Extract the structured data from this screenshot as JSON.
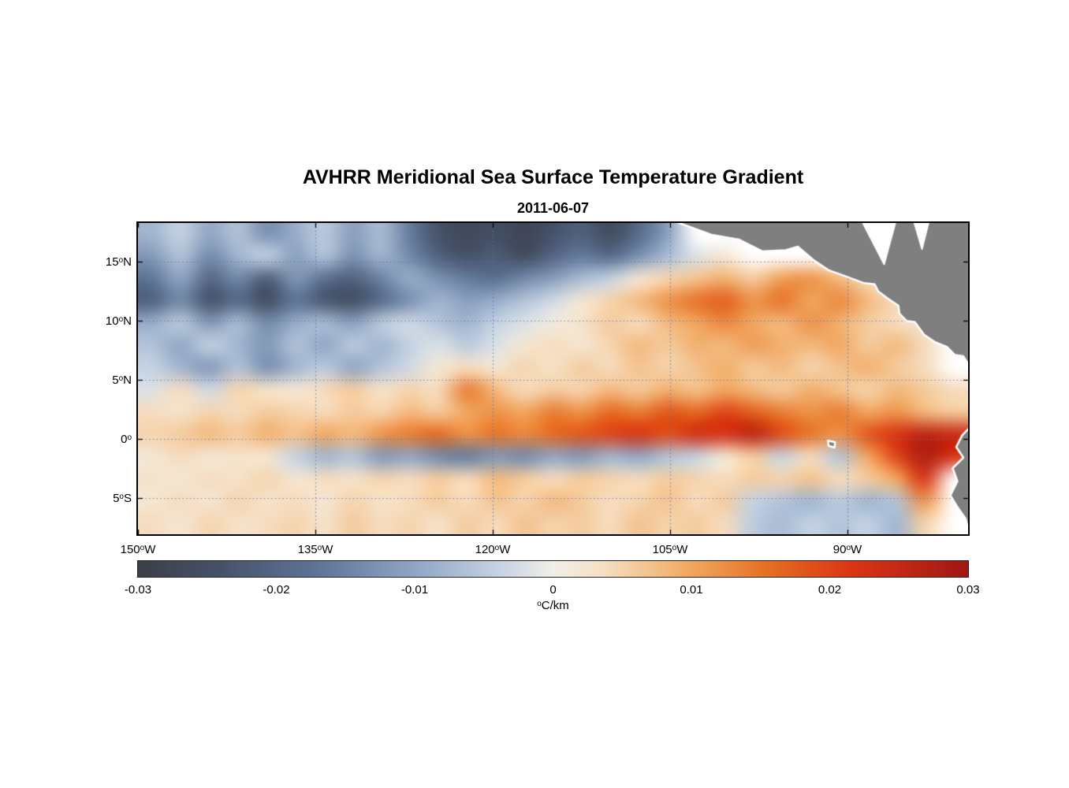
{
  "chart_data": {
    "type": "heatmap",
    "title": "AVHRR Meridional Sea Surface Temperature Gradient",
    "subtitle": "2011-06-07",
    "x_axis": {
      "label": "",
      "range": [
        -150,
        -79.8
      ],
      "ticks": [
        {
          "value": -150,
          "label": "150°W"
        },
        {
          "value": -135,
          "label": "135°W"
        },
        {
          "value": -120,
          "label": "120°W"
        },
        {
          "value": -105,
          "label": "105°W"
        },
        {
          "value": -90,
          "label": "90°W"
        }
      ]
    },
    "y_axis": {
      "label": "",
      "range": [
        18.3,
        -8.1
      ],
      "ticks": [
        {
          "value": 15,
          "label": "15°N"
        },
        {
          "value": 10,
          "label": "10°N"
        },
        {
          "value": 5,
          "label": "5°N"
        },
        {
          "value": 0,
          "label": "0°"
        },
        {
          "value": -5,
          "label": "5°S"
        }
      ]
    },
    "grid": {
      "lon_lines": [
        -135,
        -120,
        -105,
        -90
      ],
      "lat_lines": [
        15,
        10,
        5,
        0,
        -5
      ],
      "color": "#5578b4",
      "style": "dotted"
    },
    "colorbar": {
      "range": [
        -0.03,
        0.03
      ],
      "label": "°C/km",
      "ticks": [
        {
          "value": -0.03,
          "label": "-0.03"
        },
        {
          "value": -0.02,
          "label": "-0.02"
        },
        {
          "value": -0.01,
          "label": "-0.01"
        },
        {
          "value": 0,
          "label": "0"
        },
        {
          "value": 0.01,
          "label": "0.01"
        },
        {
          "value": 0.02,
          "label": "0.02"
        },
        {
          "value": 0.03,
          "label": "0.03"
        }
      ],
      "stops": [
        {
          "p": 0.0,
          "c": "#3b3f47"
        },
        {
          "p": 0.1,
          "c": "#46526a"
        },
        {
          "p": 0.22,
          "c": "#5f7698"
        },
        {
          "p": 0.34,
          "c": "#93a9c7"
        },
        {
          "p": 0.44,
          "c": "#c9d5e4"
        },
        {
          "p": 0.5,
          "c": "#f1efe8"
        },
        {
          "p": 0.56,
          "c": "#f6e0c4"
        },
        {
          "p": 0.66,
          "c": "#f2ab64"
        },
        {
          "p": 0.76,
          "c": "#e56e22"
        },
        {
          "p": 0.86,
          "c": "#da3514"
        },
        {
          "p": 1.0,
          "c": "#a01713"
        }
      ]
    },
    "grid_lon": [
      -150,
      -147.5,
      -145,
      -142.5,
      -140,
      -137.5,
      -135,
      -132.5,
      -130,
      -127.5,
      -125,
      -122.5,
      -120,
      -117.5,
      -115,
      -112.5,
      -110,
      -107.5,
      -105,
      -102.5,
      -100,
      -97.5,
      -95,
      -92.5,
      -90,
      -87.5,
      -85,
      -82.5,
      -80
    ],
    "grid_lat": [
      18,
      16,
      14,
      12,
      10,
      8,
      6,
      4,
      2,
      0,
      -2,
      -4,
      -6,
      -8
    ],
    "values": [
      [
        -0.008,
        -0.004,
        -0.01,
        -0.006,
        -0.013,
        -0.009,
        -0.005,
        -0.011,
        -0.007,
        -0.016,
        -0.024,
        -0.027,
        -0.025,
        -0.028,
        -0.024,
        -0.021,
        -0.026,
        -0.019,
        -0.011,
        null,
        null,
        null,
        null,
        null,
        null,
        null,
        null,
        null,
        null
      ],
      [
        -0.012,
        -0.006,
        -0.014,
        -0.008,
        -0.004,
        -0.011,
        -0.006,
        -0.013,
        -0.008,
        -0.014,
        -0.021,
        -0.024,
        -0.022,
        -0.026,
        -0.02,
        -0.016,
        -0.019,
        -0.013,
        -0.007,
        -0.002,
        0.002,
        null,
        null,
        null,
        null,
        null,
        null,
        null,
        null
      ],
      [
        -0.017,
        -0.01,
        -0.02,
        -0.014,
        -0.022,
        -0.012,
        -0.018,
        -0.021,
        -0.015,
        -0.009,
        -0.013,
        -0.016,
        -0.018,
        -0.014,
        -0.011,
        -0.007,
        -0.004,
        0.002,
        0.005,
        0.007,
        0.009,
        0.006,
        0.011,
        0.012,
        0.008,
        0.004,
        null,
        null,
        null
      ],
      [
        -0.021,
        -0.014,
        -0.024,
        -0.019,
        -0.026,
        -0.017,
        -0.023,
        -0.025,
        -0.019,
        -0.013,
        -0.008,
        -0.011,
        -0.009,
        -0.006,
        -0.003,
        0.002,
        0.005,
        0.008,
        0.012,
        0.015,
        0.017,
        0.012,
        0.015,
        0.01,
        0.013,
        0.008,
        0.004,
        null,
        null
      ],
      [
        -0.009,
        -0.005,
        -0.012,
        -0.007,
        -0.014,
        -0.009,
        -0.007,
        -0.011,
        -0.005,
        -0.003,
        -0.006,
        -0.008,
        -0.004,
        -0.002,
        0.001,
        0.003,
        0.006,
        0.004,
        0.008,
        0.01,
        0.013,
        0.01,
        0.008,
        0.012,
        0.009,
        0.006,
        0.004,
        0.002,
        null
      ],
      [
        -0.006,
        -0.01,
        -0.004,
        -0.008,
        -0.012,
        -0.006,
        -0.01,
        -0.005,
        -0.008,
        -0.004,
        -0.002,
        -0.005,
        -0.002,
        0.002,
        0.004,
        0.002,
        0.005,
        0.008,
        0.006,
        0.009,
        0.008,
        0.011,
        0.009,
        0.008,
        0.01,
        0.006,
        0.008,
        0.004,
        null
      ],
      [
        -0.004,
        -0.008,
        -0.012,
        -0.006,
        -0.013,
        -0.008,
        -0.005,
        -0.01,
        -0.006,
        -0.003,
        0.002,
        0.004,
        0.002,
        0.005,
        0.003,
        0.006,
        0.004,
        0.007,
        0.005,
        0.007,
        0.009,
        0.006,
        0.008,
        0.005,
        0.007,
        0.009,
        0.006,
        0.004,
        null
      ],
      [
        -0.002,
        0.004,
        -0.003,
        0.005,
        0.003,
        0.002,
        0.004,
        0.006,
        0.003,
        0.005,
        0.004,
        0.014,
        0.008,
        0.004,
        0.006,
        0.005,
        0.008,
        0.006,
        0.009,
        0.007,
        0.01,
        0.008,
        0.006,
        0.009,
        0.007,
        0.005,
        0.008,
        0.006,
        0.004
      ],
      [
        0.004,
        0.003,
        0.005,
        0.004,
        0.006,
        0.005,
        0.004,
        0.006,
        0.005,
        0.008,
        0.006,
        0.01,
        0.012,
        0.01,
        0.014,
        0.012,
        0.016,
        0.014,
        0.018,
        0.016,
        0.02,
        0.017,
        0.014,
        0.012,
        0.014,
        0.01,
        0.012,
        0.008,
        0.006
      ],
      [
        0.005,
        0.006,
        0.008,
        0.006,
        0.009,
        0.007,
        0.01,
        0.008,
        0.012,
        0.014,
        0.016,
        0.012,
        0.015,
        0.013,
        0.016,
        0.018,
        0.02,
        0.022,
        0.019,
        0.023,
        0.022,
        0.026,
        0.019,
        0.015,
        0.012,
        0.018,
        0.022,
        0.026,
        0.024
      ],
      [
        0.002,
        0.004,
        0.002,
        0.003,
        0.002,
        -0.004,
        -0.008,
        -0.006,
        -0.012,
        -0.01,
        -0.014,
        -0.016,
        -0.012,
        -0.014,
        -0.01,
        -0.012,
        -0.008,
        -0.01,
        -0.006,
        -0.004,
        0.002,
        0.006,
        -0.004,
        0.004,
        -0.006,
        0.01,
        0.02,
        0.028,
        0.022
      ],
      [
        0.003,
        0.002,
        0.004,
        0.003,
        0.005,
        0.002,
        0.004,
        0.003,
        0.005,
        0.004,
        0.006,
        0.004,
        0.008,
        0.006,
        0.004,
        0.006,
        0.005,
        0.004,
        0.006,
        0.005,
        0.004,
        0.006,
        0.005,
        0.007,
        0.004,
        0.006,
        0.01,
        0.022,
        null
      ],
      [
        0.002,
        0.004,
        0.002,
        0.005,
        0.003,
        0.004,
        0.002,
        0.005,
        0.003,
        0.004,
        0.006,
        0.004,
        0.007,
        0.005,
        0.008,
        0.006,
        0.004,
        0.005,
        0.007,
        0.004,
        0.006,
        -0.004,
        -0.006,
        -0.008,
        -0.005,
        -0.008,
        -0.006,
        0.012,
        null
      ],
      [
        0.004,
        0.002,
        0.005,
        0.003,
        0.004,
        0.005,
        0.003,
        0.006,
        0.004,
        0.005,
        0.003,
        0.006,
        0.004,
        0.007,
        0.005,
        0.006,
        0.004,
        0.007,
        0.005,
        0.006,
        0.004,
        -0.005,
        -0.007,
        -0.004,
        -0.006,
        -0.004,
        -0.008,
        0.005,
        null
      ]
    ],
    "land": {
      "color": "#7f7f7f",
      "coast_outline": "#ffffff",
      "polygons": [
        {
          "name": "central-america",
          "pts": [
            [
              -104.5,
              18.4
            ],
            [
              -101.5,
              17.3
            ],
            [
              -99.2,
              16.9
            ],
            [
              -97.2,
              15.9
            ],
            [
              -95.2,
              16.0
            ],
            [
              -94.2,
              16.3
            ],
            [
              -92.8,
              15.1
            ],
            [
              -91.6,
              14.3
            ],
            [
              -90.2,
              13.8
            ],
            [
              -88.6,
              13.2
            ],
            [
              -87.7,
              13.1
            ],
            [
              -87.4,
              12.5
            ],
            [
              -86.6,
              11.9
            ],
            [
              -85.7,
              11.3
            ],
            [
              -85.6,
              10.6
            ],
            [
              -85.0,
              10.0
            ],
            [
              -84.3,
              9.9
            ],
            [
              -83.5,
              8.8
            ],
            [
              -82.6,
              8.2
            ],
            [
              -81.6,
              7.8
            ],
            [
              -80.9,
              7.1
            ],
            [
              -80.2,
              7.0
            ],
            [
              -79.7,
              6.2
            ],
            [
              -79.7,
              18.4
            ]
          ]
        },
        {
          "name": "south-america",
          "pts": [
            [
              -79.7,
              0.9
            ],
            [
              -80.3,
              0.3
            ],
            [
              -80.8,
              -0.7
            ],
            [
              -80.2,
              -1.6
            ],
            [
              -81.1,
              -2.5
            ],
            [
              -80.7,
              -3.6
            ],
            [
              -81.3,
              -4.8
            ],
            [
              -80.7,
              -5.8
            ],
            [
              -80.0,
              -6.8
            ],
            [
              -79.7,
              -8.2
            ]
          ]
        },
        {
          "name": "galapagos",
          "pts": [
            [
              -91.65,
              -0.15
            ],
            [
              -91.05,
              -0.3
            ],
            [
              -91.1,
              -0.75
            ],
            [
              -91.6,
              -0.6
            ]
          ]
        }
      ],
      "holes": [
        {
          "name": "caribbean-gap",
          "pts": [
            [
              -88.8,
              18.5
            ],
            [
              -85.9,
              18.5
            ],
            [
              -86.9,
              14.8
            ]
          ]
        },
        {
          "name": "caribbean-gap-2",
          "pts": [
            [
              -84.4,
              18.5
            ],
            [
              -83.1,
              18.5
            ],
            [
              -83.7,
              16.1
            ]
          ]
        }
      ]
    }
  }
}
